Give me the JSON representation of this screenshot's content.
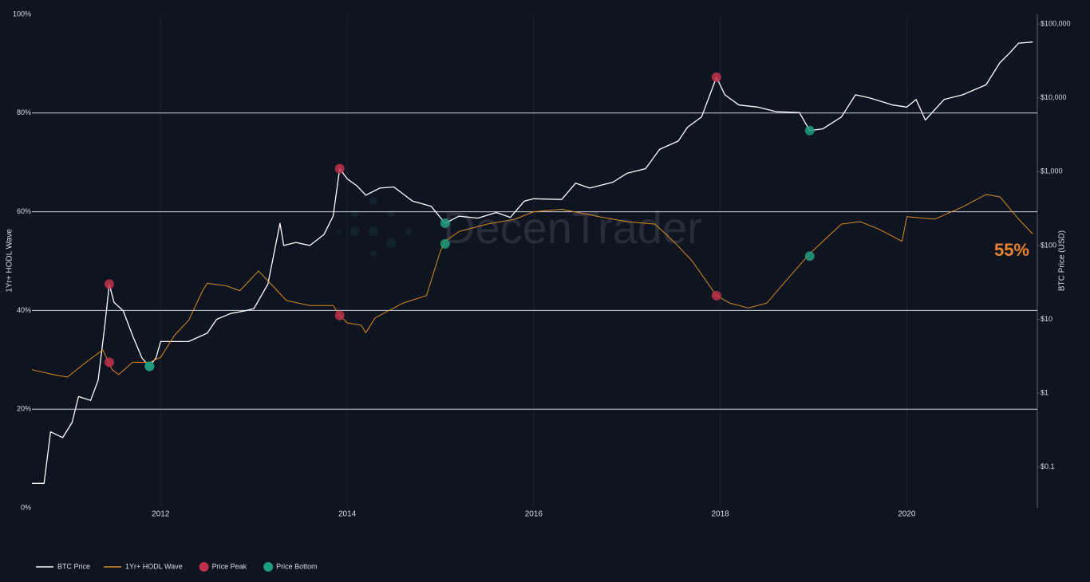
{
  "chart_data": {
    "type": "line",
    "watermark": "DecenTrader",
    "ylabel": "1Yr+ HODL Wave",
    "y2label": "BTC Price (USD)",
    "log_y2": true,
    "grid": true,
    "legend": "bottom-left",
    "annotations": [
      {
        "text": "55%",
        "color": "#e8822e"
      }
    ],
    "xlim": [
      2010.62,
      2021.4
    ],
    "xticks": [
      2012,
      2014,
      2016,
      2018,
      2020
    ],
    "ylim": [
      0,
      100
    ],
    "yticks": [
      {
        "value": 0,
        "label": "0%"
      },
      {
        "value": 20,
        "label": "20%"
      },
      {
        "value": 40,
        "label": "40%"
      },
      {
        "value": 60,
        "label": "60%"
      },
      {
        "value": 80,
        "label": "80%"
      },
      {
        "value": 100,
        "label": "100%"
      }
    ],
    "y2lim": [
      0.028,
      135000
    ],
    "y2ticks": [
      {
        "value": 0.1,
        "label": "$0.1"
      },
      {
        "value": 1,
        "label": "$1"
      },
      {
        "value": 10,
        "label": "$10"
      },
      {
        "value": 100,
        "label": "$100"
      },
      {
        "value": 1000,
        "label": "$1,000"
      },
      {
        "value": 10000,
        "label": "$10,000"
      },
      {
        "value": 100000,
        "label": "$100,000"
      }
    ],
    "series": [
      {
        "name": "BTC Price",
        "color": "#ffffff",
        "axis": "y2",
        "x": [
          2010.62,
          2010.75,
          2010.82,
          2010.95,
          2011.05,
          2011.12,
          2011.25,
          2011.33,
          2011.4,
          2011.45,
          2011.5,
          2011.6,
          2011.7,
          2011.8,
          2011.88,
          2011.95,
          2012.0,
          2012.1,
          2012.3,
          2012.5,
          2012.6,
          2012.75,
          2012.9,
          2013.0,
          2013.15,
          2013.28,
          2013.32,
          2013.45,
          2013.6,
          2013.75,
          2013.85,
          2013.92,
          2014.0,
          2014.1,
          2014.2,
          2014.35,
          2014.5,
          2014.7,
          2014.9,
          2015.05,
          2015.2,
          2015.4,
          2015.6,
          2015.75,
          2015.9,
          2016.0,
          2016.3,
          2016.45,
          2016.6,
          2016.85,
          2017.0,
          2017.2,
          2017.35,
          2017.55,
          2017.65,
          2017.8,
          2017.96,
          2018.05,
          2018.2,
          2018.4,
          2018.6,
          2018.85,
          2018.96,
          2019.1,
          2019.3,
          2019.45,
          2019.6,
          2019.85,
          2020.0,
          2020.1,
          2020.2,
          2020.4,
          2020.6,
          2020.85,
          2021.0,
          2021.1,
          2021.2,
          2021.35
        ],
        "values": [
          0.06,
          0.06,
          0.3,
          0.25,
          0.4,
          0.9,
          0.8,
          1.5,
          8,
          30,
          17,
          13,
          6,
          3,
          2.3,
          3,
          5,
          5,
          5,
          6.5,
          10,
          12,
          13,
          14,
          30,
          200,
          100,
          110,
          100,
          140,
          250,
          1100,
          800,
          650,
          480,
          600,
          620,
          400,
          340,
          200,
          250,
          235,
          280,
          240,
          400,
          430,
          420,
          700,
          600,
          720,
          950,
          1100,
          2000,
          2600,
          4000,
          5500,
          19000,
          11000,
          8000,
          7500,
          6500,
          6300,
          3600,
          3800,
          5500,
          11000,
          10000,
          8000,
          7500,
          9500,
          5000,
          9500,
          11000,
          15000,
          30000,
          40000,
          55000,
          57000
        ]
      },
      {
        "name": "1Yr+ HODL Wave",
        "color": "#d88b1f",
        "x": [
          2010.62,
          2010.85,
          2011.0,
          2011.2,
          2011.38,
          2011.48,
          2011.55,
          2011.7,
          2011.88,
          2012.0,
          2012.15,
          2012.3,
          2012.45,
          2012.5,
          2012.7,
          2012.85,
          2013.05,
          2013.2,
          2013.35,
          2013.6,
          2013.85,
          2013.92,
          2014.0,
          2014.15,
          2014.2,
          2014.3,
          2014.6,
          2014.85,
          2015.0,
          2015.05,
          2015.2,
          2015.5,
          2015.8,
          2016.0,
          2016.3,
          2016.7,
          2017.0,
          2017.3,
          2017.5,
          2017.7,
          2017.96,
          2018.1,
          2018.3,
          2018.5,
          2018.75,
          2018.96,
          2019.1,
          2019.3,
          2019.5,
          2019.7,
          2019.95,
          2020.0,
          2020.3,
          2020.6,
          2020.85,
          2021.0,
          2021.2,
          2021.35
        ],
        "values": [
          28,
          27,
          26.5,
          29.5,
          32,
          28,
          27,
          29.5,
          29.5,
          30.5,
          35,
          38,
          44,
          45.5,
          45,
          44,
          48,
          45,
          42,
          41,
          41,
          39,
          37.5,
          37,
          35.5,
          38.5,
          41.5,
          43,
          52,
          54,
          56,
          57.5,
          58.5,
          60,
          60.5,
          59,
          58,
          57.5,
          54,
          50,
          43,
          41.5,
          40.5,
          41.5,
          47,
          51.5,
          54,
          57.5,
          58,
          56.5,
          54,
          59,
          58.5,
          61,
          63.5,
          63,
          58.5,
          55.5
        ]
      },
      {
        "name": "Price Peak",
        "color": "#c0304a",
        "type": "scatter",
        "x": [
          2011.45,
          2013.92,
          2017.96
        ],
        "values": [
          29.5,
          39,
          43
        ],
        "y2_values": [
          30,
          1100,
          19000
        ]
      },
      {
        "name": "Price Bottom",
        "color": "#1f9e7e",
        "type": "scatter",
        "x": [
          2011.88,
          2015.05,
          2018.96
        ],
        "values": [
          28.7,
          53.5,
          51
        ],
        "y2_values": [
          2.3,
          200,
          3600
        ]
      }
    ]
  }
}
